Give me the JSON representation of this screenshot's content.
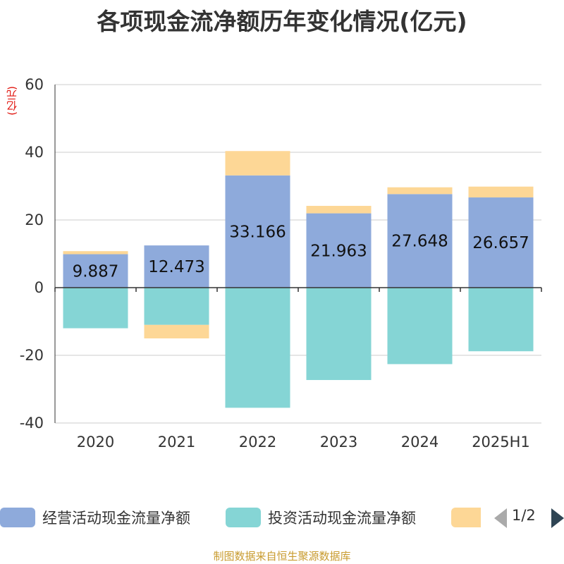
{
  "chart_data": {
    "type": "bar",
    "stacked": true,
    "title": "各项现金流净额历年变化情况(亿元)",
    "unit_label": "(亿元)",
    "categories": [
      "2020",
      "2021",
      "2022",
      "2023",
      "2024",
      "2025H1"
    ],
    "ylim": [
      -40,
      60
    ],
    "yticks": [
      60,
      40,
      20,
      0,
      -20,
      -40
    ],
    "grid": true,
    "legend_position": "bottom",
    "series": [
      {
        "name": "经营活动现金流量净额",
        "color": "#8eaadb",
        "values": [
          9.887,
          12.473,
          33.166,
          21.963,
          27.648,
          26.657
        ],
        "labels": [
          "9.887",
          "12.473",
          "33.166",
          "21.963",
          "27.648",
          "26.657"
        ]
      },
      {
        "name": "投资活动现金流量净额",
        "color": "#85d5d5",
        "values": [
          -12.0,
          -11.0,
          -35.5,
          -27.3,
          -22.6,
          -18.8
        ]
      },
      {
        "name": "",
        "color": "#fdd796",
        "values": [
          0.9,
          -4.0,
          7.2,
          2.2,
          2.0,
          3.2
        ]
      }
    ]
  },
  "legend": {
    "items": [
      {
        "label": "经营活动现金流量净额",
        "color": "#8eaadb"
      },
      {
        "label": "投资活动现金流量净额",
        "color": "#85d5d5"
      },
      {
        "label": "",
        "color": "#fdd796"
      }
    ],
    "page_indicator": "1/2"
  },
  "source": "制图数据来自恒生聚源数据库"
}
